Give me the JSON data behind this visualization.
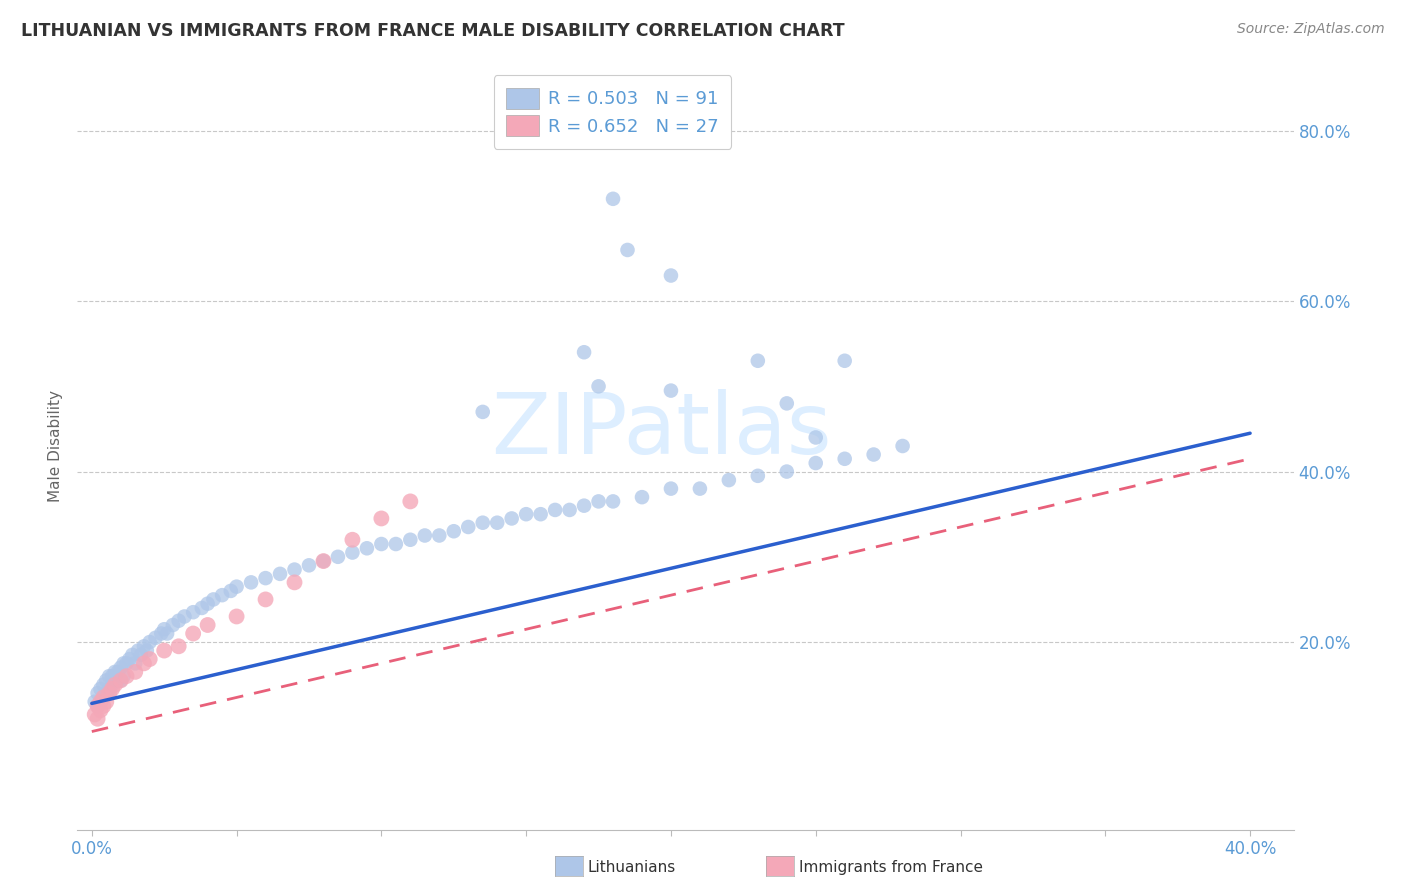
{
  "title": "LITHUANIAN VS IMMIGRANTS FROM FRANCE MALE DISABILITY CORRELATION CHART",
  "source": "Source: ZipAtlas.com",
  "ylabel": "Male Disability",
  "xlim": [
    -0.005,
    0.415
  ],
  "ylim": [
    -0.02,
    0.88
  ],
  "yticks": [
    0.2,
    0.4,
    0.6,
    0.8
  ],
  "yticklabels": [
    "20.0%",
    "40.0%",
    "60.0%",
    "80.0%"
  ],
  "xtick_positions": [
    0.0,
    0.05,
    0.1,
    0.15,
    0.2,
    0.25,
    0.3,
    0.35,
    0.4
  ],
  "xtick_labels": [
    "0.0%",
    "",
    "",
    "",
    "",
    "",
    "",
    "",
    "40.0%"
  ],
  "series1_label": "Lithuanians",
  "series1_color": "#aec6e8",
  "series1_R": "0.503",
  "series1_N": "91",
  "series2_label": "Immigrants from France",
  "series2_color": "#f4a8b8",
  "series2_R": "0.652",
  "series2_N": "27",
  "line1_color": "#2b5fce",
  "line1_x": [
    0.0,
    0.4
  ],
  "line1_y": [
    0.128,
    0.445
  ],
  "line2_color": "#e8607a",
  "line2_x": [
    0.0,
    0.4
  ],
  "line2_y": [
    0.095,
    0.415
  ],
  "background_color": "#ffffff",
  "grid_color": "#c8c8c8",
  "title_color": "#333333",
  "axis_color": "#5b9bd5",
  "watermark_text": "ZIPatlas",
  "watermark_color": "#ddeeff",
  "lith_x": [
    0.001,
    0.002,
    0.002,
    0.003,
    0.003,
    0.004,
    0.004,
    0.005,
    0.005,
    0.006,
    0.006,
    0.007,
    0.007,
    0.008,
    0.008,
    0.009,
    0.009,
    0.01,
    0.01,
    0.011,
    0.011,
    0.012,
    0.013,
    0.014,
    0.015,
    0.016,
    0.017,
    0.018,
    0.019,
    0.02,
    0.022,
    0.024,
    0.025,
    0.026,
    0.028,
    0.03,
    0.032,
    0.035,
    0.038,
    0.04,
    0.042,
    0.045,
    0.048,
    0.05,
    0.055,
    0.06,
    0.065,
    0.07,
    0.075,
    0.08,
    0.085,
    0.09,
    0.095,
    0.1,
    0.105,
    0.11,
    0.115,
    0.12,
    0.125,
    0.13,
    0.135,
    0.14,
    0.145,
    0.15,
    0.155,
    0.16,
    0.165,
    0.17,
    0.175,
    0.18,
    0.19,
    0.2,
    0.21,
    0.22,
    0.23,
    0.24,
    0.25,
    0.26,
    0.27,
    0.28,
    0.2,
    0.17,
    0.175,
    0.135,
    0.24,
    0.23,
    0.2,
    0.185,
    0.18,
    0.25,
    0.26
  ],
  "lith_y": [
    0.13,
    0.14,
    0.125,
    0.145,
    0.13,
    0.15,
    0.135,
    0.155,
    0.14,
    0.16,
    0.145,
    0.16,
    0.15,
    0.165,
    0.155,
    0.165,
    0.155,
    0.17,
    0.155,
    0.175,
    0.16,
    0.175,
    0.18,
    0.185,
    0.175,
    0.19,
    0.185,
    0.195,
    0.19,
    0.2,
    0.205,
    0.21,
    0.215,
    0.21,
    0.22,
    0.225,
    0.23,
    0.235,
    0.24,
    0.245,
    0.25,
    0.255,
    0.26,
    0.265,
    0.27,
    0.275,
    0.28,
    0.285,
    0.29,
    0.295,
    0.3,
    0.305,
    0.31,
    0.315,
    0.315,
    0.32,
    0.325,
    0.325,
    0.33,
    0.335,
    0.34,
    0.34,
    0.345,
    0.35,
    0.35,
    0.355,
    0.355,
    0.36,
    0.365,
    0.365,
    0.37,
    0.38,
    0.38,
    0.39,
    0.395,
    0.4,
    0.41,
    0.415,
    0.42,
    0.43,
    0.495,
    0.54,
    0.5,
    0.47,
    0.48,
    0.53,
    0.63,
    0.66,
    0.72,
    0.44,
    0.53
  ],
  "france_x": [
    0.001,
    0.002,
    0.002,
    0.003,
    0.003,
    0.004,
    0.004,
    0.005,
    0.006,
    0.007,
    0.008,
    0.01,
    0.012,
    0.015,
    0.018,
    0.02,
    0.025,
    0.03,
    0.035,
    0.04,
    0.05,
    0.06,
    0.07,
    0.08,
    0.09,
    0.1,
    0.11
  ],
  "france_y": [
    0.115,
    0.11,
    0.125,
    0.12,
    0.13,
    0.125,
    0.135,
    0.13,
    0.14,
    0.145,
    0.15,
    0.155,
    0.16,
    0.165,
    0.175,
    0.18,
    0.19,
    0.195,
    0.21,
    0.22,
    0.23,
    0.25,
    0.27,
    0.295,
    0.32,
    0.345,
    0.365
  ]
}
